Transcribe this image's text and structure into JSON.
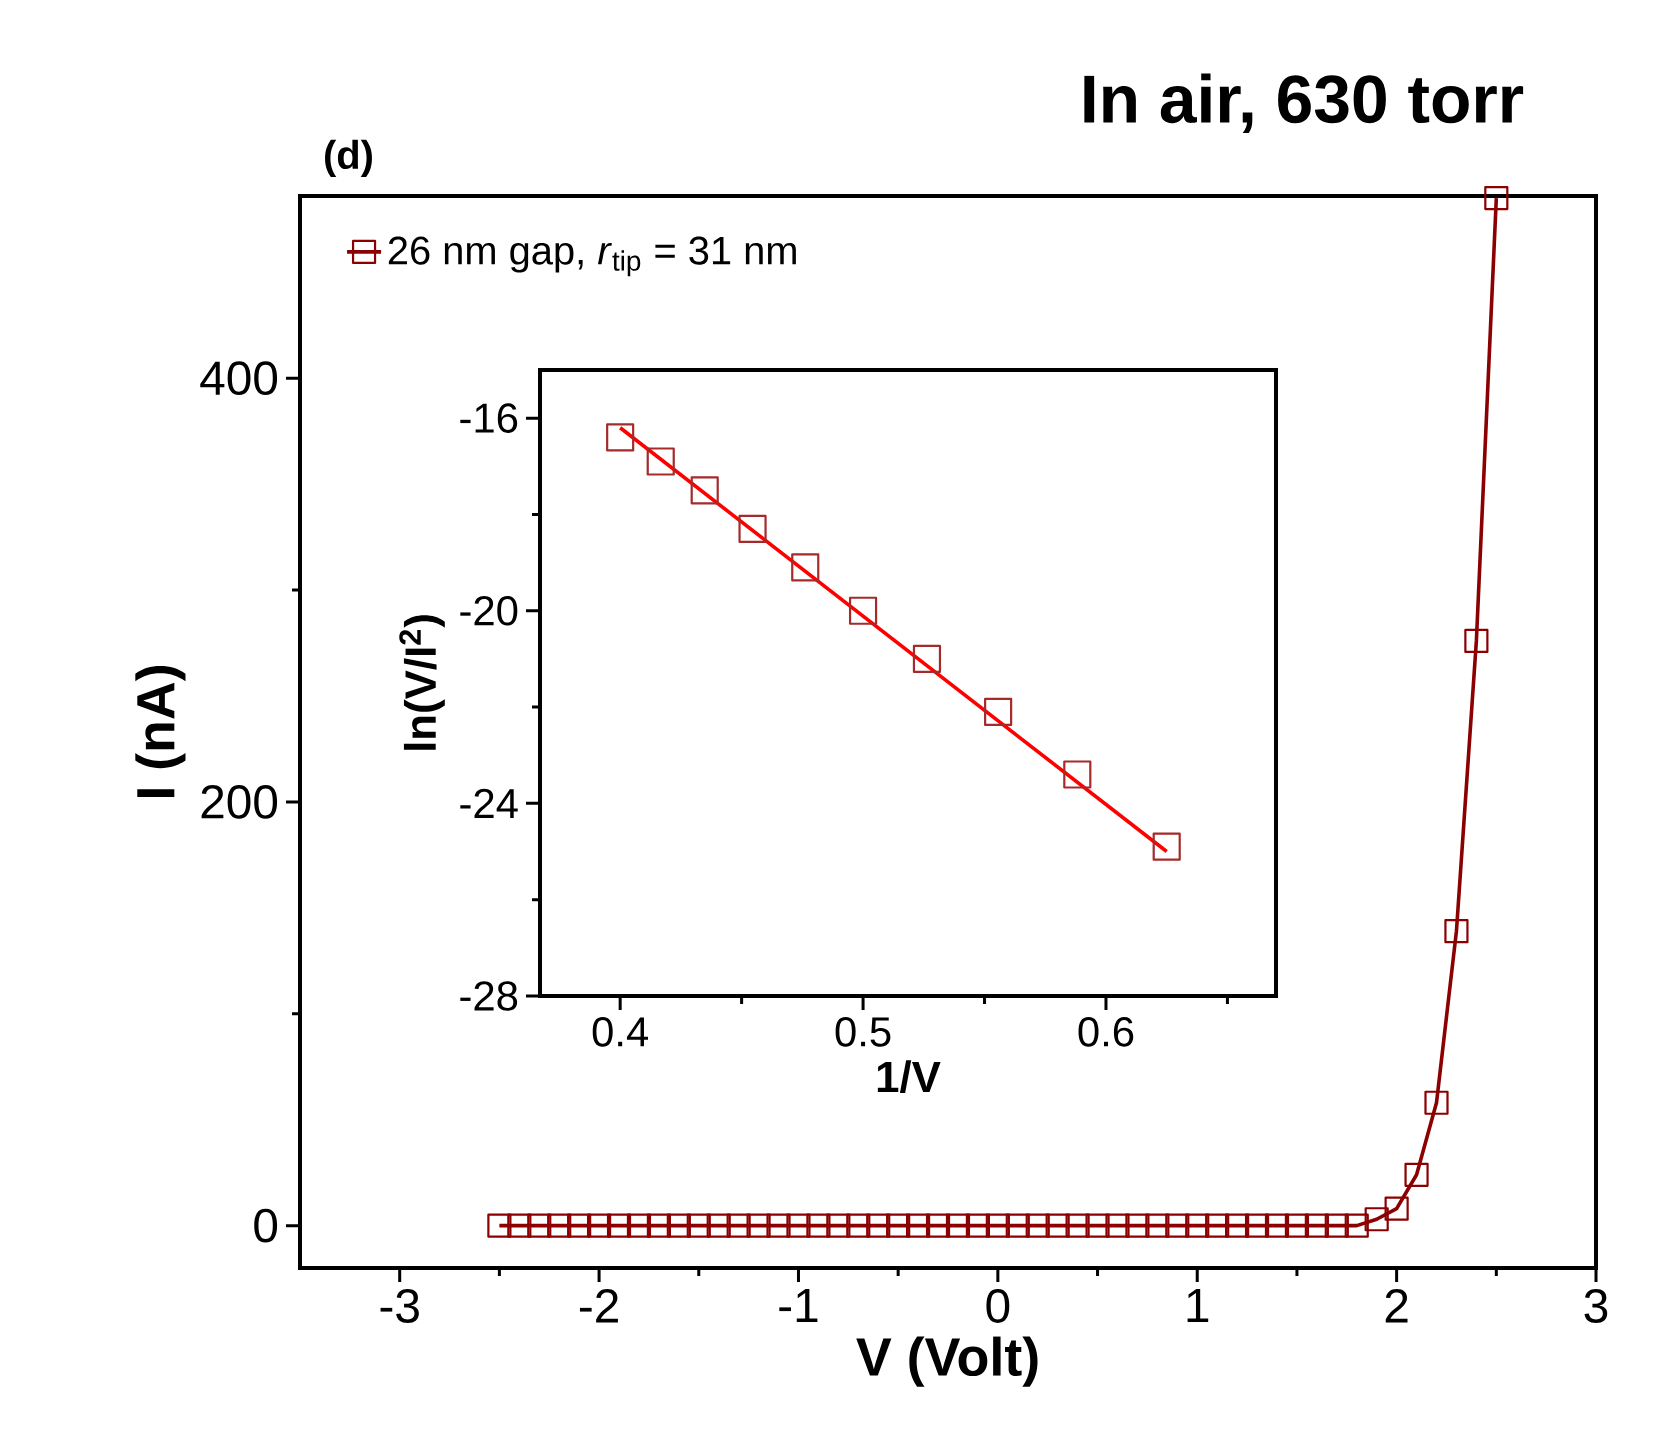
{
  "chart_data": [
    {
      "type": "line",
      "title": "In air, 630 torr",
      "xlabel": "V (Volt)",
      "ylabel": "I (nA)",
      "annotations": [
        "(d)"
      ],
      "x": [
        -2.5,
        -2.4,
        -2.3,
        -2.2,
        -2.1,
        -2.0,
        -1.9,
        -1.8,
        -1.7,
        -1.6,
        -1.5,
        -1.4,
        -1.3,
        -1.2,
        -1.1,
        -1.0,
        -0.9,
        -0.8,
        -0.7,
        -0.6,
        -0.5,
        -0.4,
        -0.3,
        -0.2,
        -0.1,
        0.0,
        0.1,
        0.2,
        0.3,
        0.4,
        0.5,
        0.6,
        0.7,
        0.8,
        0.9,
        1.0,
        1.1,
        1.2,
        1.3,
        1.4,
        1.5,
        1.6,
        1.7,
        1.8,
        1.9,
        2.0,
        2.1,
        2.2,
        2.3,
        2.4,
        2.5
      ],
      "series": [
        {
          "name": "26 nm gap, *r*$_{tip}$ = 31 nm",
          "color": "#8b0000",
          "values": [
            0,
            0,
            0,
            0,
            0,
            0,
            0,
            0,
            0,
            0,
            0,
            0,
            0,
            0,
            0,
            0,
            0,
            0,
            0,
            0,
            0,
            0,
            0,
            0,
            0,
            0,
            0,
            0,
            0,
            0,
            0,
            0,
            0,
            0,
            0,
            0,
            0,
            0,
            0,
            0,
            0,
            0,
            0,
            0,
            3,
            8,
            24,
            58,
            139,
            276,
            485
          ]
        }
      ],
      "xlim": [
        -3.5,
        3.0
      ],
      "ylim": [
        -20,
        486
      ],
      "xticks": [
        -3,
        {
          "value": -2.5,
          "label": null
        },
        -2,
        {
          "value": -1.5,
          "label": null
        },
        -1,
        {
          "value": -0.5,
          "label": null
        },
        0,
        {
          "value": 0.5,
          "label": null
        },
        1,
        {
          "value": 1.5,
          "label": null
        },
        2,
        {
          "value": 2.5,
          "label": null
        },
        3
      ],
      "yticks": [
        0,
        {
          "value": 100,
          "label": null
        },
        200,
        {
          "value": 300,
          "label": null
        },
        400
      ],
      "marker": "square",
      "line_style": "solid",
      "legend": "top left"
    },
    {
      "type": "scatter",
      "xlabel": "1/V",
      "ylabel": "ln(V/I$^{2}$)",
      "series": [
        {
          "type": "scatter",
          "marker": "square",
          "color": "#a52a2a",
          "x": [
            0.4,
            0.4167,
            0.4348,
            0.4545,
            0.4762,
            0.5,
            0.5263,
            0.5556,
            0.5882,
            0.625
          ],
          "values": [
            -16.4,
            -16.9,
            -17.5,
            -18.3,
            -19.1,
            -20.0,
            -21.0,
            -22.1,
            -23.4,
            -24.9
          ]
        },
        {
          "type": "line",
          "marker": "none",
          "color": "#ff0000",
          "x": [
            0.4,
            0.625
          ],
          "values": [
            -16.2,
            -25.0
          ]
        }
      ],
      "xlim": [
        0.367,
        0.67
      ],
      "ylim": [
        -28,
        -15
      ],
      "xticks": [
        0.4,
        {
          "value": 0.45,
          "label": null
        },
        0.5,
        {
          "value": 0.55,
          "label": null
        },
        0.6,
        {
          "value": 0.65,
          "label": null
        }
      ],
      "yticks": [
        -28,
        {
          "value": -26,
          "label": null
        },
        -24,
        {
          "value": -22,
          "label": null
        },
        -20,
        {
          "value": -18,
          "label": null
        },
        -16
      ]
    }
  ]
}
